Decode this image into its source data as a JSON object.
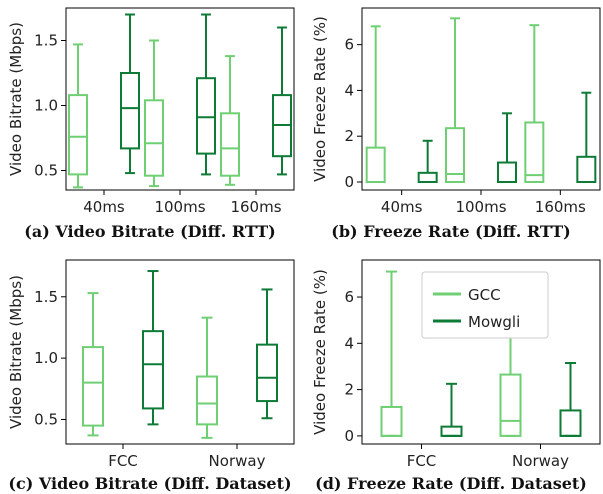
{
  "colors": {
    "gcc": "#6fcf73",
    "mowgli": "#0d7a36"
  },
  "legend": {
    "items": [
      "GCC",
      "Mowgli"
    ]
  },
  "chart_data": [
    {
      "id": "a",
      "type": "box",
      "caption": "(a) Video Bitrate (Diff. RTT)",
      "ylabel": "Video Bitrate (Mbps)",
      "categories": [
        "40ms",
        "100ms",
        "160ms"
      ],
      "ylim": [
        0.35,
        1.75
      ],
      "yticks": [
        0.5,
        1.0,
        1.5
      ],
      "ytick_labels": [
        "0.5",
        "1.0",
        "1.5"
      ],
      "series": [
        {
          "name": "GCC",
          "boxes": [
            {
              "min": 0.37,
              "q1": 0.47,
              "median": 0.76,
              "q3": 1.08,
              "max": 1.47
            },
            {
              "min": 0.38,
              "q1": 0.46,
              "median": 0.71,
              "q3": 1.04,
              "max": 1.5
            },
            {
              "min": 0.39,
              "q1": 0.46,
              "median": 0.67,
              "q3": 0.94,
              "max": 1.38
            }
          ]
        },
        {
          "name": "Mowgli",
          "boxes": [
            {
              "min": 0.48,
              "q1": 0.67,
              "median": 0.98,
              "q3": 1.25,
              "max": 1.7
            },
            {
              "min": 0.47,
              "q1": 0.63,
              "median": 0.91,
              "q3": 1.21,
              "max": 1.7
            },
            {
              "min": 0.47,
              "q1": 0.61,
              "median": 0.85,
              "q3": 1.08,
              "max": 1.6
            }
          ]
        }
      ]
    },
    {
      "id": "b",
      "type": "box",
      "caption": "(b) Freeze Rate (Diff. RTT)",
      "ylabel": "Video Freeze Rate (%)",
      "categories": [
        "40ms",
        "100ms",
        "160ms"
      ],
      "ylim": [
        -0.35,
        7.6
      ],
      "yticks": [
        0,
        2,
        4,
        6
      ],
      "ytick_labels": [
        "0",
        "2",
        "4",
        "6"
      ],
      "series": [
        {
          "name": "GCC",
          "boxes": [
            {
              "min": 0.0,
              "q1": 0.0,
              "median": 0.0,
              "q3": 1.5,
              "max": 6.8
            },
            {
              "min": 0.0,
              "q1": 0.0,
              "median": 0.35,
              "q3": 2.35,
              "max": 7.15
            },
            {
              "min": 0.0,
              "q1": 0.0,
              "median": 0.3,
              "q3": 2.6,
              "max": 6.85
            }
          ]
        },
        {
          "name": "Mowgli",
          "boxes": [
            {
              "min": 0.0,
              "q1": 0.0,
              "median": 0.0,
              "q3": 0.4,
              "max": 1.8
            },
            {
              "min": 0.0,
              "q1": 0.0,
              "median": 0.0,
              "q3": 0.85,
              "max": 3.0
            },
            {
              "min": 0.0,
              "q1": 0.0,
              "median": 0.0,
              "q3": 1.1,
              "max": 3.9
            }
          ]
        }
      ]
    },
    {
      "id": "c",
      "type": "box",
      "caption": "(c) Video Bitrate (Diff. Dataset)",
      "ylabel": "Video Bitrate (Mbps)",
      "categories": [
        "FCC",
        "Norway"
      ],
      "ylim": [
        0.3,
        1.8
      ],
      "yticks": [
        0.5,
        1.0,
        1.5
      ],
      "ytick_labels": [
        "0.5",
        "1.0",
        "1.5"
      ],
      "series": [
        {
          "name": "GCC",
          "boxes": [
            {
              "min": 0.37,
              "q1": 0.45,
              "median": 0.8,
              "q3": 1.09,
              "max": 1.53
            },
            {
              "min": 0.35,
              "q1": 0.46,
              "median": 0.63,
              "q3": 0.85,
              "max": 1.33
            }
          ]
        },
        {
          "name": "Mowgli",
          "boxes": [
            {
              "min": 0.46,
              "q1": 0.59,
              "median": 0.95,
              "q3": 1.22,
              "max": 1.71
            },
            {
              "min": 0.51,
              "q1": 0.65,
              "median": 0.84,
              "q3": 1.11,
              "max": 1.56
            }
          ]
        }
      ]
    },
    {
      "id": "d",
      "type": "box",
      "caption": "(d) Freeze Rate (Diff. Dataset)",
      "ylabel": "Video Freeze Rate (%)",
      "categories": [
        "FCC",
        "Norway"
      ],
      "ylim": [
        -0.35,
        7.6
      ],
      "yticks": [
        0,
        2,
        4,
        6
      ],
      "ytick_labels": [
        "0",
        "2",
        "4",
        "6"
      ],
      "series": [
        {
          "name": "GCC",
          "boxes": [
            {
              "min": 0.0,
              "q1": 0.0,
              "median": 0.0,
              "q3": 1.25,
              "max": 7.1
            },
            {
              "min": 0.0,
              "q1": 0.0,
              "median": 0.65,
              "q3": 2.65,
              "max": 6.9
            }
          ]
        },
        {
          "name": "Mowgli",
          "boxes": [
            {
              "min": 0.0,
              "q1": 0.0,
              "median": 0.0,
              "q3": 0.4,
              "max": 2.25
            },
            {
              "min": 0.0,
              "q1": 0.0,
              "median": 0.0,
              "q3": 1.1,
              "max": 3.15
            }
          ]
        }
      ]
    }
  ]
}
